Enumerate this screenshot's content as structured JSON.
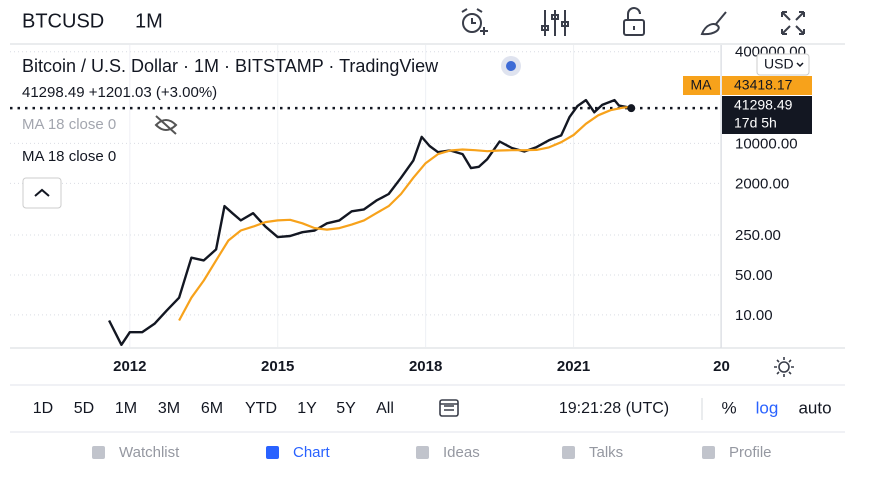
{
  "header": {
    "timeframe": "1M"
  },
  "legend": {
    "title": "Bitcoin / U.S. Dollar · 1M · BITSTAMP · TradingView",
    "price_line": "41298.49 +1201.03 (+3.00%)",
    "indicators": [
      "MA 18 close 0",
      "MA 18 close 0"
    ]
  },
  "currency": "USD",
  "chart_data": {
    "type": "line",
    "log_scale": true,
    "grid": true,
    "countdown": "17d 5h",
    "xlim": [
      2009.57,
      2023.97
    ],
    "xticks": [
      2012,
      2015,
      2018,
      2021,
      {
        "value": 2024,
        "label": "20"
      }
    ],
    "ylim": [
      2.75,
      525000
    ],
    "yticks": [
      {
        "value": 10,
        "label": "10.00"
      },
      {
        "value": 50,
        "label": "50.00"
      },
      {
        "value": 250,
        "label": "250.00"
      },
      {
        "value": 2000,
        "label": "2000.00"
      },
      {
        "value": 10000,
        "label": "10000.00"
      },
      {
        "value": 400000,
        "label": "400000.00"
      }
    ],
    "series": [
      {
        "name": "BTCUSD",
        "color": "#131722",
        "x": [
          2011.58,
          2011.83,
          2012.0,
          2012.25,
          2012.5,
          2012.75,
          2013.0,
          2013.25,
          2013.5,
          2013.75,
          2013.92,
          2014.08,
          2014.25,
          2014.5,
          2014.75,
          2015.0,
          2015.25,
          2015.5,
          2015.75,
          2016.0,
          2016.25,
          2016.5,
          2016.75,
          2017.0,
          2017.25,
          2017.5,
          2017.75,
          2017.92,
          2018.08,
          2018.25,
          2018.5,
          2018.75,
          2018.92,
          2019.08,
          2019.25,
          2019.5,
          2019.75,
          2020.0,
          2020.25,
          2020.5,
          2020.75,
          2020.92,
          2021.08,
          2021.25,
          2021.42,
          2021.58,
          2021.83,
          2021.92,
          2022.08,
          2022.17
        ],
        "values": [
          8,
          3,
          5,
          5,
          7,
          12,
          20,
          100,
          90,
          140,
          800,
          600,
          450,
          600,
          350,
          230,
          240,
          280,
          300,
          400,
          450,
          650,
          700,
          1000,
          1300,
          2500,
          5000,
          13000,
          9000,
          7000,
          7500,
          6500,
          3700,
          3900,
          5300,
          10800,
          8300,
          7200,
          8600,
          11300,
          13800,
          29000,
          45000,
          57000,
          35000,
          47000,
          57000,
          46000,
          43000,
          41298.49
        ]
      },
      {
        "name": "MA",
        "color": "#f7a21b",
        "x": [
          2013.0,
          2013.25,
          2013.5,
          2013.75,
          2014.0,
          2014.25,
          2014.5,
          2014.75,
          2015.0,
          2015.25,
          2015.5,
          2015.75,
          2016.0,
          2016.25,
          2016.5,
          2016.75,
          2017.0,
          2017.25,
          2017.5,
          2017.75,
          2018.0,
          2018.25,
          2018.5,
          2018.75,
          2019.0,
          2019.25,
          2019.5,
          2019.75,
          2020.0,
          2020.25,
          2020.5,
          2020.75,
          2021.0,
          2021.25,
          2021.5,
          2021.75,
          2022.0,
          2022.17
        ],
        "values": [
          8,
          20,
          40,
          90,
          200,
          300,
          350,
          420,
          450,
          460,
          400,
          330,
          310,
          330,
          380,
          450,
          600,
          800,
          1300,
          2500,
          4500,
          6500,
          7500,
          7800,
          7600,
          7300,
          7500,
          7600,
          7600,
          7700,
          8500,
          10500,
          14000,
          22000,
          31000,
          38000,
          42000,
          43418.17
        ]
      }
    ]
  },
  "timeframes": [
    "1D",
    "5D",
    "1M",
    "3M",
    "6M",
    "YTD",
    "1Y",
    "5Y",
    "All"
  ],
  "clock": "19:21:28 (UTC)",
  "scale_options": [
    "%",
    "log",
    "auto"
  ],
  "nav": [
    "Watchlist",
    "Chart",
    "Ideas",
    "Talks",
    "Profile"
  ]
}
